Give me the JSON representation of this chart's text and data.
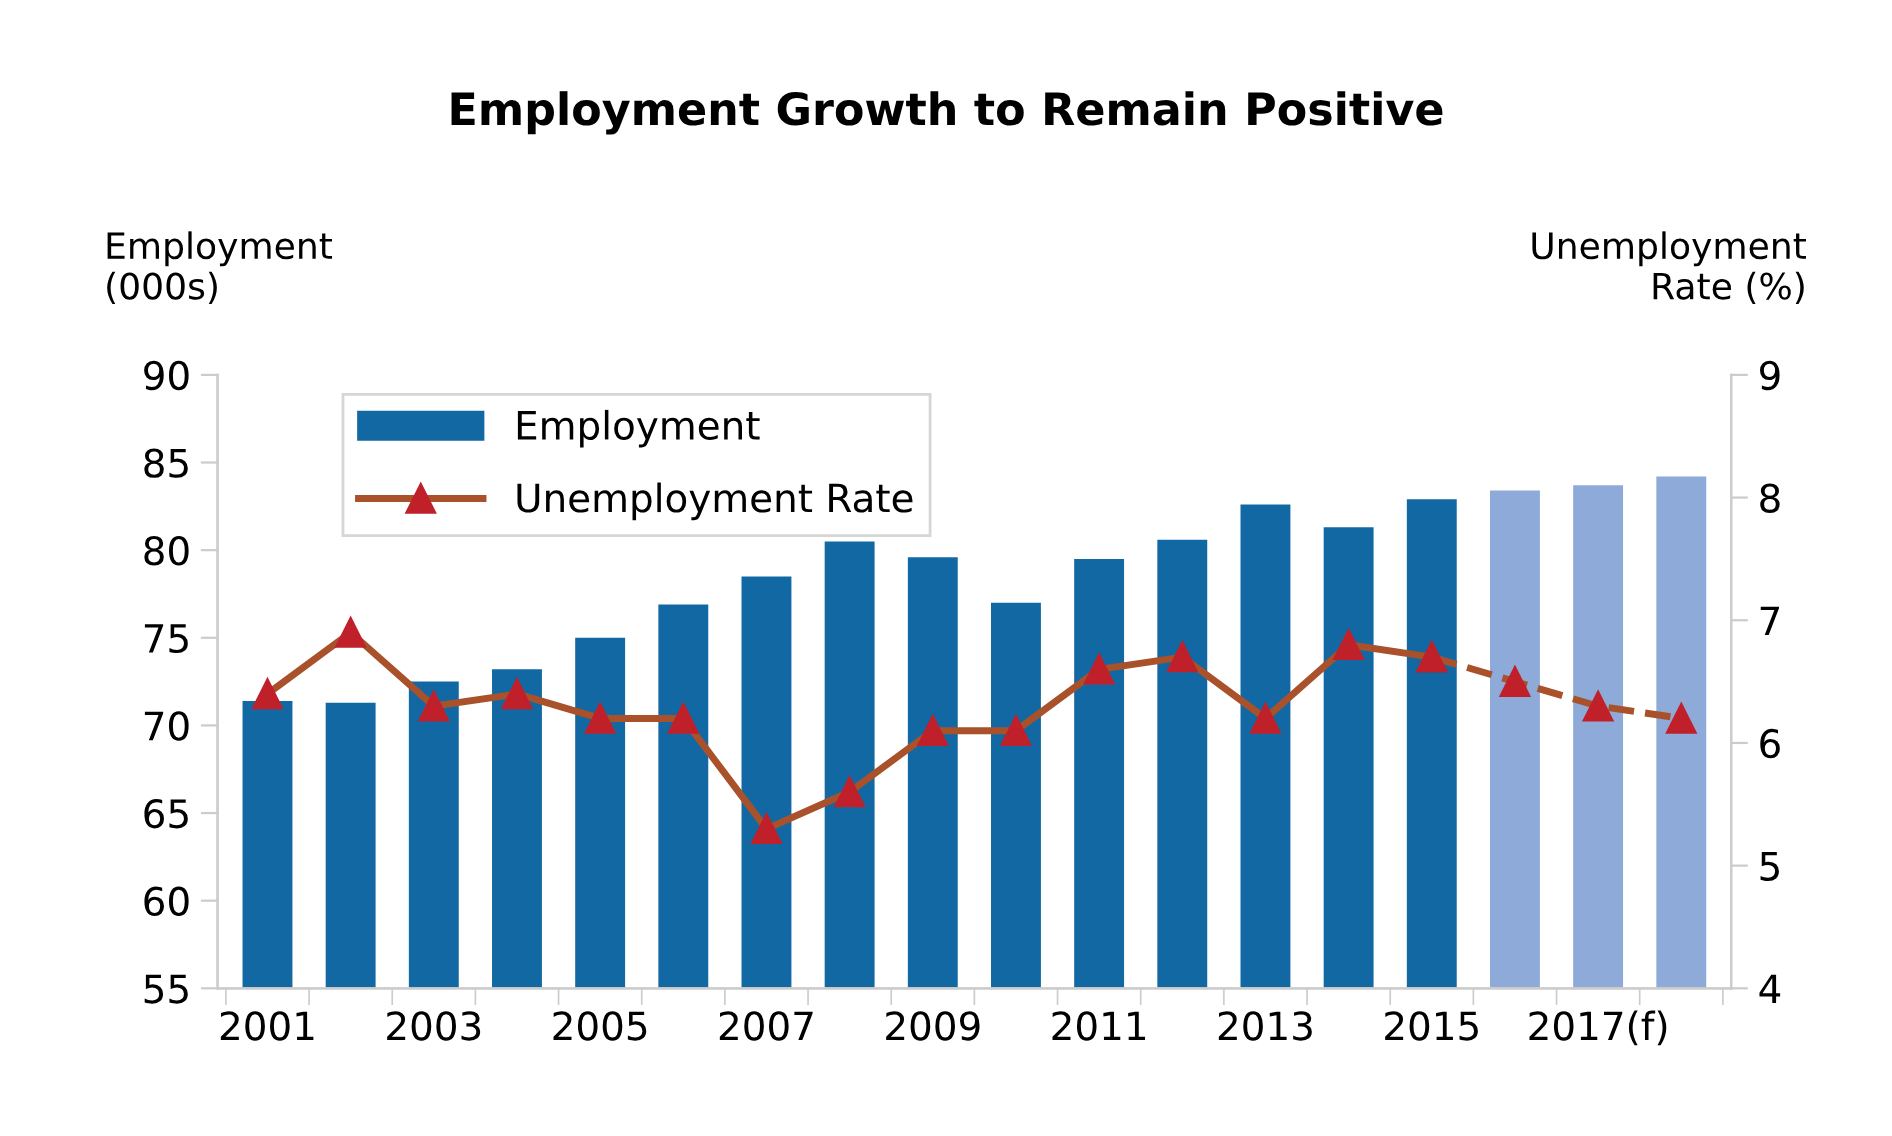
{
  "chart_data": {
    "type": "bar",
    "title": "Employment Growth to Remain Positive",
    "ylabel": "Employment\n(000s)",
    "y2label": "Unemployment\nRate (%)",
    "categories": [
      "2001",
      null,
      "2003",
      null,
      "2005",
      null,
      "2007",
      null,
      "2009",
      null,
      "2011",
      null,
      "2013",
      null,
      "2015",
      null,
      "2017(f)",
      null
    ],
    "series": [
      {
        "name": "Employment",
        "color": "#1268a3",
        "colors": [
          "#1268a3",
          "#1268a3",
          "#1268a3",
          "#1268a3",
          "#1268a3",
          "#1268a3",
          "#1268a3",
          "#1268a3",
          "#1268a3",
          "#1268a3",
          "#1268a3",
          "#1268a3",
          "#1268a3",
          "#1268a3",
          "#1268a3",
          "#8eaad8",
          "#8eaad8",
          "#8eaad8"
        ],
        "values": [
          71.4,
          71.3,
          72.5,
          73.2,
          75.0,
          76.9,
          78.5,
          80.5,
          79.6,
          77.0,
          79.5,
          80.6,
          82.6,
          81.3,
          82.9,
          83.4,
          83.7,
          84.2
        ]
      },
      {
        "name": "Unemployment Rate",
        "type": "line",
        "axis": "y2",
        "color": "#a9512a",
        "marker": "triangle",
        "line_style": "solid",
        "values": [
          6.4,
          6.9,
          6.3,
          6.4,
          6.2,
          6.2,
          5.3,
          5.6,
          6.1,
          6.1,
          6.6,
          6.7,
          6.2,
          6.8,
          6.7,
          null,
          null,
          null
        ]
      },
      {
        "type": "line",
        "axis": "y2",
        "color": "#a9512a",
        "marker": "triangle",
        "line_style": "dashed",
        "values": [
          null,
          null,
          null,
          null,
          null,
          null,
          null,
          null,
          null,
          null,
          null,
          null,
          null,
          null,
          6.7,
          6.5,
          6.3,
          6.2
        ]
      }
    ],
    "ylim": [
      55,
      90
    ],
    "yticks": [
      55,
      60,
      65,
      70,
      75,
      80,
      85,
      90
    ],
    "y2lim": [
      4,
      9
    ],
    "y2ticks": [
      4,
      5,
      6,
      7,
      8,
      9
    ],
    "legend": "top left",
    "grid": false
  }
}
